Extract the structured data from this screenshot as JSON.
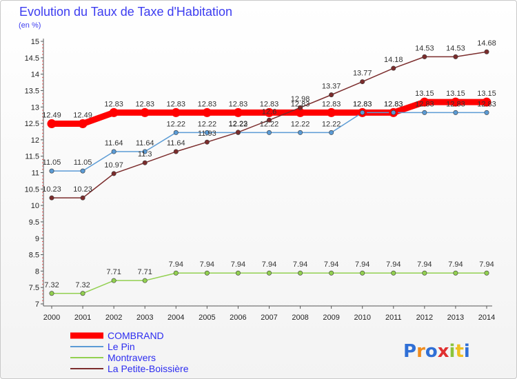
{
  "chart_data": {
    "type": "line",
    "title": "Evolution du Taux de Taxe d'Habitation",
    "subtitle": "(en %)",
    "x": [
      "2000",
      "2001",
      "2002",
      "2003",
      "2004",
      "2005",
      "2006",
      "2007",
      "2008",
      "2009",
      "2010",
      "2011",
      "2012",
      "2013",
      "2014"
    ],
    "ylim": [
      7,
      15
    ],
    "yticks": [
      "7",
      "7.5",
      "8",
      "8.5",
      "9",
      "9.5",
      "10",
      "10.5",
      "11",
      "11.5",
      "12",
      "12.5",
      "13",
      "13.5",
      "14",
      "14.5",
      "15"
    ],
    "grid": false,
    "legend": "bottom-left",
    "series": [
      {
        "name": "COMBRAND",
        "color": "#ff0000",
        "values": [
          12.49,
          12.49,
          12.83,
          12.83,
          12.83,
          12.83,
          12.83,
          12.83,
          12.83,
          12.83,
          12.83,
          12.83,
          13.15,
          13.15,
          13.15
        ]
      },
      {
        "name": "Le Pin",
        "color": "#5b9bd5",
        "values": [
          11.05,
          11.05,
          11.64,
          11.64,
          12.22,
          12.22,
          12.22,
          12.22,
          12.22,
          12.22,
          12.83,
          12.83,
          12.83,
          12.83,
          12.83
        ]
      },
      {
        "name": "Montravers",
        "color": "#92d050",
        "values": [
          7.32,
          7.32,
          7.71,
          7.71,
          7.94,
          7.94,
          7.94,
          7.94,
          7.94,
          7.94,
          7.94,
          7.94,
          7.94,
          7.94,
          7.94
        ]
      },
      {
        "name": "La Petite-Boissière",
        "color": "#7b2c2c",
        "values": [
          10.23,
          10.23,
          10.97,
          11.3,
          11.64,
          11.93,
          12.23,
          12.6,
          12.98,
          13.37,
          13.77,
          14.18,
          14.53,
          14.53,
          14.68
        ]
      }
    ]
  },
  "logo": {
    "text": "Proxiti",
    "letter_colors": [
      "#2f6fd6",
      "#f08c1e",
      "#2f6fd6",
      "#e03030",
      "#8cc43c",
      "#f0c020",
      "#2f6fd6"
    ]
  }
}
